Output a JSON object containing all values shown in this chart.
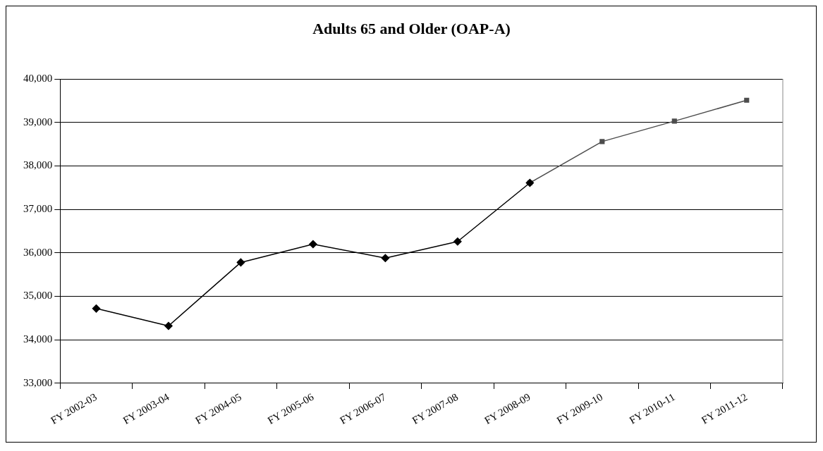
{
  "chart_data": {
    "type": "line",
    "title": "Adults 65 and Older (OAP-A)",
    "categories": [
      "FY 2002-03",
      "FY 2003-04",
      "FY 2004-05",
      "FY 2005-06",
      "FY 2006-07",
      "FY 2007-08",
      "FY 2008-09",
      "FY 2009-10",
      "FY 2010-11",
      "FY 2011-12"
    ],
    "series": [
      {
        "color": "#000000",
        "marker": "diamond",
        "values": [
          34720,
          34320,
          35780,
          36200,
          35880,
          36260,
          37610,
          null,
          null,
          null
        ]
      },
      {
        "color": "#4d4d4d",
        "marker": "square",
        "values": [
          null,
          null,
          null,
          null,
          null,
          null,
          37610,
          38560,
          39030,
          39510
        ]
      }
    ],
    "ylim": [
      33000,
      40000
    ],
    "yticks": [
      {
        "value": 33000,
        "label": "33,000"
      },
      {
        "value": 34000,
        "label": "34,000"
      },
      {
        "value": 35000,
        "label": "35,000"
      },
      {
        "value": 36000,
        "label": "36,000"
      },
      {
        "value": 37000,
        "label": "37,000"
      },
      {
        "value": 38000,
        "label": "38,000"
      },
      {
        "value": 39000,
        "label": "39,000"
      },
      {
        "value": 40000,
        "label": "40,000"
      }
    ],
    "grid": "y",
    "legend": false,
    "line_style": "solid"
  }
}
